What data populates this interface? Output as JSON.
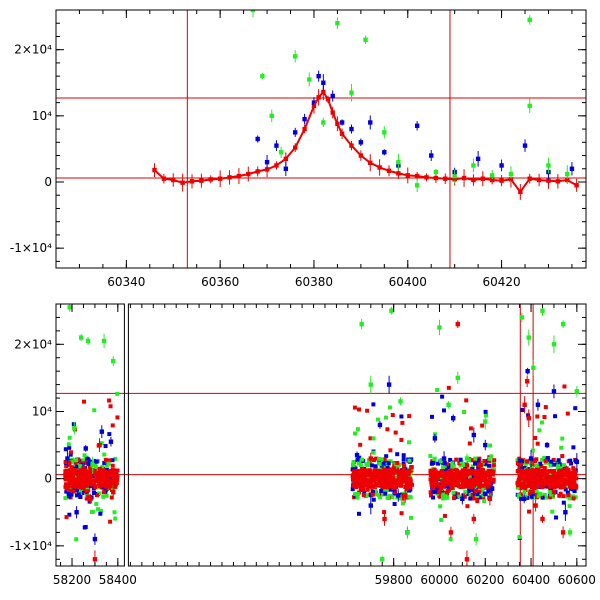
{
  "chart_data": [
    {
      "type": "scatter",
      "title": "",
      "xlabel": "",
      "ylabel": "",
      "xlim": [
        60325,
        60438
      ],
      "ylim": [
        -13000,
        26000
      ],
      "grid": false,
      "x_ticks": [
        {
          "value": 60340,
          "label": "60340"
        },
        {
          "value": 60360,
          "label": "60360"
        },
        {
          "value": 60380,
          "label": "60380"
        },
        {
          "value": 60400,
          "label": "60400"
        },
        {
          "value": 60420,
          "label": "60420"
        }
      ],
      "y_ticks": [
        {
          "value": -10000,
          "label": "-1×10⁴"
        },
        {
          "value": 0,
          "label": "0"
        },
        {
          "value": 10000,
          "label": "10⁴"
        },
        {
          "value": 20000,
          "label": "2×10⁴"
        }
      ],
      "reference_lines": {
        "vertical": [
          60353,
          60409
        ],
        "horizontal": [
          600,
          12700
        ]
      },
      "reference_line_color": "#dd0000",
      "series": [
        {
          "color": "#ee0000",
          "points": [
            [
              60346,
              1800
            ],
            [
              60348,
              500
            ],
            [
              60350,
              300
            ],
            [
              60352,
              -100
            ],
            [
              60354,
              100
            ],
            [
              60356,
              200
            ],
            [
              60358,
              400
            ],
            [
              60360,
              500
            ],
            [
              60362,
              700
            ],
            [
              60364,
              900
            ],
            [
              60366,
              1200
            ],
            [
              60368,
              1600
            ],
            [
              60370,
              1900
            ],
            [
              60372,
              2500
            ],
            [
              60374,
              3500
            ],
            [
              60376,
              5200
            ],
            [
              60378,
              8000
            ],
            [
              60380,
              11500
            ],
            [
              60381,
              12800
            ],
            [
              60382,
              13600
            ],
            [
              60383,
              12500
            ],
            [
              60384,
              10500
            ],
            [
              60385,
              8800
            ],
            [
              60386,
              7300
            ],
            [
              60388,
              5500
            ],
            [
              60390,
              4000
            ],
            [
              60392,
              2900
            ],
            [
              60394,
              2200
            ],
            [
              60396,
              1700
            ],
            [
              60398,
              1300
            ],
            [
              60400,
              1000
            ],
            [
              60402,
              900
            ],
            [
              60404,
              700
            ],
            [
              60406,
              600
            ],
            [
              60408,
              500
            ],
            [
              60410,
              400
            ],
            [
              60412,
              600
            ],
            [
              60414,
              300
            ],
            [
              60416,
              500
            ],
            [
              60418,
              300
            ],
            [
              60420,
              200
            ],
            [
              60422,
              400
            ],
            [
              60424,
              -1500
            ],
            [
              60426,
              500
            ],
            [
              60428,
              300
            ],
            [
              60430,
              200
            ],
            [
              60432,
              100
            ],
            [
              60434,
              300
            ],
            [
              60436,
              -500
            ]
          ]
        },
        {
          "color": "#0000dd",
          "points": [
            [
              60368,
              6500
            ],
            [
              60370,
              3000
            ],
            [
              60372,
              5500
            ],
            [
              60374,
              2000
            ],
            [
              60376,
              7500
            ],
            [
              60378,
              9500
            ],
            [
              60380,
              12000
            ],
            [
              60381,
              16000
            ],
            [
              60382,
              15000
            ],
            [
              60384,
              13000
            ],
            [
              60386,
              9000
            ],
            [
              60388,
              8000
            ],
            [
              60390,
              6000
            ],
            [
              60392,
              9000
            ],
            [
              60395,
              4500
            ],
            [
              60398,
              2500
            ],
            [
              60402,
              8500
            ],
            [
              60405,
              4000
            ],
            [
              60410,
              1500
            ],
            [
              60415,
              3500
            ],
            [
              60420,
              2500
            ],
            [
              60425,
              5500
            ],
            [
              60430,
              1500
            ],
            [
              60435,
              2000
            ]
          ]
        },
        {
          "color": "#22ee22",
          "points": [
            [
              60367,
              26000
            ],
            [
              60369,
              16000
            ],
            [
              60371,
              10000
            ],
            [
              60373,
              4500
            ],
            [
              60376,
              19000
            ],
            [
              60379,
              15500
            ],
            [
              60382,
              9000
            ],
            [
              60385,
              24000
            ],
            [
              60388,
              13500
            ],
            [
              60391,
              21500
            ],
            [
              60395,
              7500
            ],
            [
              60398,
              3000
            ],
            [
              60402,
              -500
            ],
            [
              60406,
              1500
            ],
            [
              60410,
              800
            ],
            [
              60414,
              2500
            ],
            [
              60418,
              1000
            ],
            [
              60422,
              1200
            ],
            [
              60426,
              11500
            ],
            [
              60426,
              24500
            ],
            [
              60430,
              2500
            ],
            [
              60434,
              1200
            ]
          ]
        }
      ]
    },
    {
      "type": "scatter",
      "title": "",
      "xlabel": "",
      "ylabel": "",
      "xlim": [
        58130,
        60640
      ],
      "ylim": [
        -13000,
        26000
      ],
      "grid": false,
      "x_breaks": [
        [
          58420,
          58650
        ]
      ],
      "x_ticks": [
        {
          "value": 58200,
          "label": "58200"
        },
        {
          "value": 58400,
          "label": "58400"
        },
        {
          "value": 59800,
          "label": "59800"
        },
        {
          "value": 60000,
          "label": "60000"
        },
        {
          "value": 60200,
          "label": "60200"
        },
        {
          "value": 60400,
          "label": "60400"
        },
        {
          "value": 60600,
          "label": "60600"
        }
      ],
      "y_ticks": [
        {
          "value": -10000,
          "label": "-1×10⁴"
        },
        {
          "value": 0,
          "label": "0"
        },
        {
          "value": 10000,
          "label": "10⁴"
        },
        {
          "value": 20000,
          "label": "2×10⁴"
        }
      ],
      "reference_lines": {
        "vertical": [
          60353,
          60409
        ],
        "horizontal": [
          600,
          12700
        ]
      },
      "reference_line_color": "#dd0000",
      "segments": [
        {
          "x_range": [
            58170,
            58400
          ]
        },
        {
          "x_range": [
            59620,
            59880
          ]
        },
        {
          "x_range": [
            59960,
            60240
          ]
        },
        {
          "x_range": [
            60340,
            60600
          ]
        }
      ],
      "series": [
        {
          "color": "#ee0000",
          "points": [
            [
              58200,
              -500
            ],
            [
              58250,
              1500
            ],
            [
              58280,
              -3000
            ],
            [
              58300,
              -12000
            ],
            [
              58320,
              5000
            ],
            [
              58350,
              200
            ],
            [
              58380,
              -2000
            ],
            [
              59650,
              -800
            ],
            [
              59700,
              3000
            ],
            [
              59760,
              -6000
            ],
            [
              59800,
              1500
            ],
            [
              59850,
              -2500
            ],
            [
              60000,
              -2000
            ],
            [
              60050,
              -8000
            ],
            [
              60080,
              23000
            ],
            [
              60120,
              -12000
            ],
            [
              60150,
              -6000
            ],
            [
              60180,
              2000
            ],
            [
              60220,
              -3000
            ],
            [
              60372,
              11000
            ],
            [
              60383,
              14500
            ],
            [
              60390,
              9000
            ],
            [
              60400,
              1000
            ],
            [
              60420,
              -4000
            ],
            [
              60450,
              -6000
            ],
            [
              60500,
              -2000
            ],
            [
              60540,
              -8000
            ],
            [
              60580,
              -500
            ]
          ]
        },
        {
          "color": "#0000dd",
          "points": [
            [
              58180,
              3000
            ],
            [
              58220,
              -5000
            ],
            [
              58260,
              4500
            ],
            [
              58300,
              -9000
            ],
            [
              58330,
              7000
            ],
            [
              58370,
              5500
            ],
            [
              59640,
              3500
            ],
            [
              59700,
              -4000
            ],
            [
              59740,
              8000
            ],
            [
              59780,
              14000
            ],
            [
              59820,
              -2500
            ],
            [
              59860,
              -8000
            ],
            [
              59980,
              6000
            ],
            [
              60020,
              3000
            ],
            [
              60060,
              9000
            ],
            [
              60100,
              -3000
            ],
            [
              60150,
              6500
            ],
            [
              60200,
              5000
            ],
            [
              60230,
              -1500
            ],
            [
              60370,
              -3000
            ],
            [
              60385,
              16000
            ],
            [
              60400,
              3000
            ],
            [
              60430,
              11000
            ],
            [
              60470,
              5000
            ],
            [
              60500,
              13000
            ],
            [
              60550,
              -5000
            ],
            [
              60600,
              2500
            ]
          ]
        },
        {
          "color": "#22ee22",
          "points": [
            [
              58190,
              25500
            ],
            [
              58210,
              7500
            ],
            [
              58240,
              21000
            ],
            [
              58270,
              20500
            ],
            [
              58290,
              2000
            ],
            [
              58340,
              20500
            ],
            [
              58380,
              17500
            ],
            [
              59660,
              23000
            ],
            [
              59700,
              14000
            ],
            [
              59750,
              -12000
            ],
            [
              59790,
              25000
            ],
            [
              59830,
              11500
            ],
            [
              59860,
              -8000
            ],
            [
              60000,
              22500
            ],
            [
              60040,
              11000
            ],
            [
              60080,
              15000
            ],
            [
              60120,
              3000
            ],
            [
              60160,
              -9000
            ],
            [
              60200,
              8500
            ],
            [
              60360,
              24000
            ],
            [
              60390,
              21000
            ],
            [
              60410,
              16500
            ],
            [
              60450,
              25000
            ],
            [
              60500,
              20000
            ],
            [
              60540,
              23000
            ],
            [
              60570,
              -8000
            ],
            [
              60600,
              13000
            ]
          ]
        }
      ]
    }
  ]
}
